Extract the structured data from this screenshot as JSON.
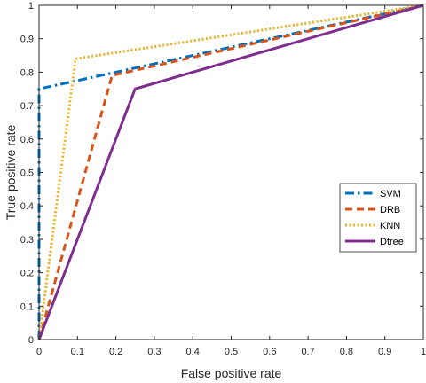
{
  "chart_data": {
    "type": "line",
    "title": "",
    "xlabel": "False positive rate",
    "ylabel": "True positive rate",
    "xlim": [
      0,
      1
    ],
    "ylim": [
      0,
      1
    ],
    "xticks": [
      "0",
      "0.1",
      "0.2",
      "0.3",
      "0.4",
      "0.5",
      "0.6",
      "0.7",
      "0.8",
      "0.9",
      "1"
    ],
    "yticks": [
      "0",
      "0.1",
      "0.2",
      "0.3",
      "0.4",
      "0.5",
      "0.6",
      "0.7",
      "0.8",
      "0.9",
      "1"
    ],
    "grid": false,
    "legend_position": "right",
    "series": [
      {
        "name": "SVM",
        "color": "#0072BD",
        "style": "dashdot",
        "x": [
          0,
          0,
          1
        ],
        "y": [
          0,
          0.75,
          1
        ]
      },
      {
        "name": "DRB",
        "color": "#D95319",
        "style": "dashed",
        "x": [
          0,
          0.19,
          1
        ],
        "y": [
          0,
          0.79,
          1
        ]
      },
      {
        "name": "KNN",
        "color": "#EDB120",
        "style": "dotted",
        "x": [
          0,
          0.095,
          1
        ],
        "y": [
          0,
          0.84,
          1
        ]
      },
      {
        "name": "Dtree",
        "color": "#7E2F8E",
        "style": "solid",
        "x": [
          0,
          0.25,
          1
        ],
        "y": [
          0,
          0.75,
          1
        ]
      }
    ]
  }
}
